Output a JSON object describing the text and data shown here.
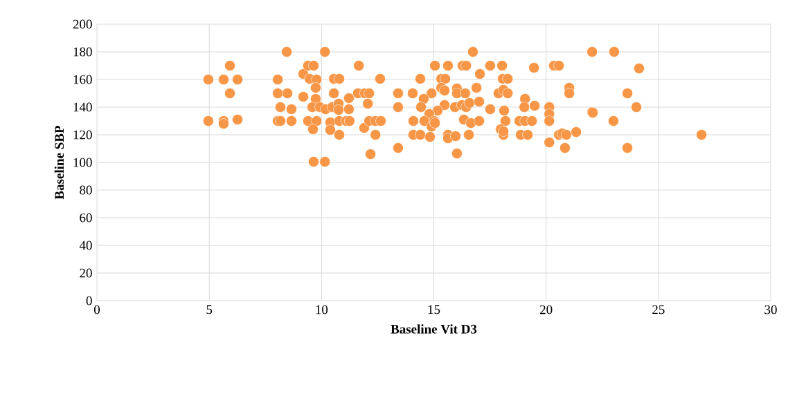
{
  "chart_data": {
    "type": "scatter",
    "xlabel": "Baseline Vit D3",
    "ylabel": "Baseline SBP",
    "x": [
      4.96,
      4.96,
      5.64,
      5.64,
      5.64,
      5.92,
      5.92,
      6.26,
      6.26,
      8.05,
      8.05,
      8.05,
      8.17,
      8.17,
      8.45,
      8.48,
      8.66,
      8.66,
      9.19,
      9.19,
      9.4,
      9.65,
      9.47,
      9.78,
      9.74,
      9.74,
      9.59,
      9.93,
      10.18,
      10.48,
      9.4,
      9.78,
      9.62,
      10.15,
      10.55,
      10.79,
      10.55,
      11.22,
      11.22,
      11.66,
      11.62,
      11.93,
      12.12,
      12.06,
      12.61,
      10.76,
      10.76,
      10.39,
      10.39,
      10.79,
      11.1,
      11.25,
      10.79,
      11.9,
      12.12,
      12.4,
      12.64,
      12.4,
      12.18,
      9.65,
      10.15,
      13.41,
      13.41,
      13.41,
      16.74,
      22.05,
      15.05,
      15.63,
      16.28,
      16.44,
      17.51,
      18.04,
      19.46,
      20.35,
      20.57,
      14.06,
      14.4,
      14.9,
      15.33,
      15.51,
      15.33,
      15.48,
      16.03,
      16.03,
      16.4,
      16.9,
      17.05,
      18.07,
      18.29,
      17.88,
      18.1,
      18.29,
      19.06,
      21.03,
      21.03,
      14.55,
      14.43,
      15.48,
      15.17,
      14.8,
      15.94,
      16.25,
      16.44,
      16.59,
      17.02,
      17.51,
      18.13,
      18.19,
      19.03,
      19.49,
      20.14,
      20.14,
      20.14,
      22.05,
      14.09,
      14.58,
      15.02,
      14.9,
      15.05,
      16.34,
      16.65,
      17.02,
      18.81,
      19.06,
      19.37,
      17.98,
      18.1,
      14.09,
      14.4,
      14.83,
      15.63,
      15.63,
      15.97,
      16.56,
      18.87,
      19.18,
      20.57,
      20.72,
      20.9,
      21.34,
      20.14,
      20.84,
      16.03,
      18.1,
      23.03,
      24.14,
      23.62,
      24.02,
      22.08,
      23.0,
      26.92,
      23.62
    ],
    "values": [
      160,
      130,
      160,
      130,
      128,
      170,
      150,
      160,
      131,
      160,
      150,
      130,
      140,
      130,
      180,
      150,
      138.5,
      130,
      147.5,
      164,
      170,
      170,
      160.5,
      160,
      154,
      146,
      140,
      140,
      138.5,
      140,
      130,
      130,
      124,
      180,
      160.5,
      160.5,
      150,
      146.5,
      138.5,
      170,
      150,
      150,
      150,
      142.5,
      160.5,
      142.5,
      138,
      129,
      123.5,
      130,
      130,
      130,
      120,
      125,
      130,
      130,
      130,
      120,
      106,
      100.5,
      100.5,
      150,
      140,
      110.5,
      180,
      180,
      170,
      170,
      170,
      170,
      170,
      170,
      168.5,
      170,
      170,
      150,
      160.5,
      150,
      160.5,
      160.5,
      154,
      152,
      153.5,
      150,
      150,
      154,
      164,
      160.5,
      160.5,
      150,
      152.5,
      150,
      146,
      154,
      150,
      146,
      140,
      141.5,
      137.5,
      135,
      140,
      141.5,
      140,
      143,
      144,
      138.5,
      137.5,
      130,
      140,
      141,
      140,
      135,
      130,
      136.5,
      130,
      130,
      130,
      126,
      128.5,
      131,
      128.5,
      130,
      130,
      130,
      130,
      124,
      120,
      120,
      120,
      118.5,
      120,
      117.5,
      119,
      120,
      120,
      120,
      120,
      121,
      120,
      122,
      114.5,
      110.5,
      106.5,
      122.5,
      180,
      168,
      150,
      140,
      136,
      130,
      120,
      110.5
    ],
    "color": "#f79646",
    "marker": "circle",
    "grid": true,
    "xlim": [
      0,
      30
    ],
    "ylim": [
      0,
      200
    ],
    "xticks": [
      0,
      5,
      10,
      15,
      20,
      25,
      30
    ],
    "yticks": [
      0,
      20,
      40,
      60,
      80,
      100,
      120,
      140,
      160,
      180,
      200
    ]
  }
}
